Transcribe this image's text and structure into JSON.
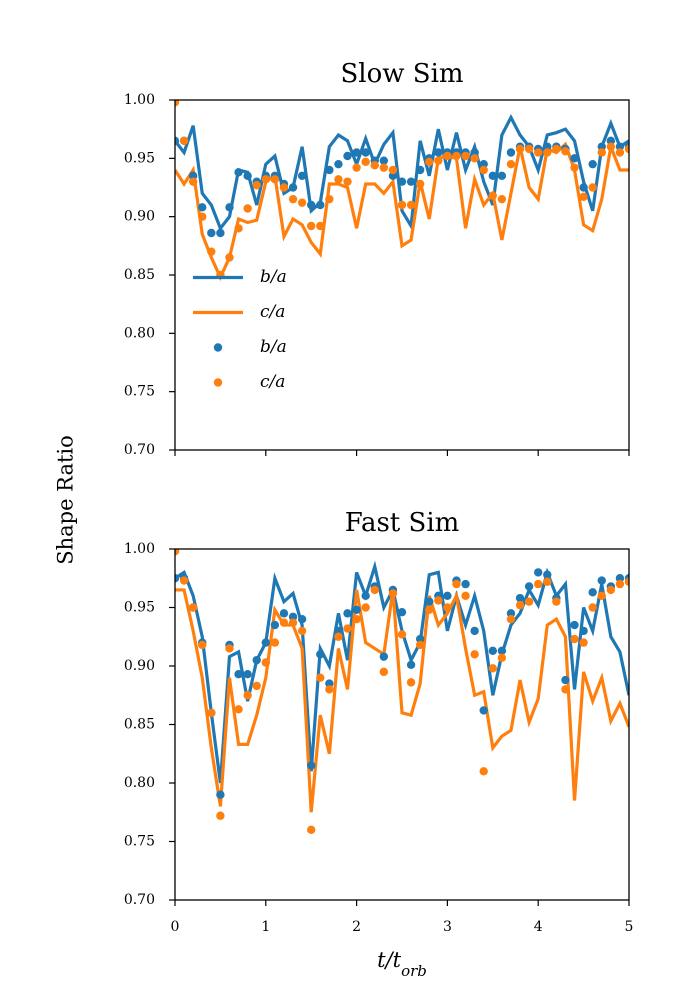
{
  "ylabel": "Shape Ratio",
  "chart_data": [
    {
      "type": "line",
      "title": "Slow Sim",
      "legend": "center left",
      "show_xtick_labels": false,
      "xlim": [
        0,
        5
      ],
      "xticks": [
        0,
        1,
        2,
        3,
        4,
        5
      ],
      "ylim": [
        0.7,
        1.0
      ],
      "yticks": [
        {
          "value": 0.7,
          "label": "0.70"
        },
        {
          "value": 0.75,
          "label": "0.75"
        },
        {
          "value": 0.8,
          "label": "0.80"
        },
        {
          "value": 0.85,
          "label": "0.85"
        },
        {
          "value": 0.9,
          "label": "0.90"
        },
        {
          "value": 0.95,
          "label": "0.95"
        },
        {
          "value": 1.0,
          "label": "1.00"
        }
      ],
      "x": [
        0,
        0.1,
        0.2,
        0.3,
        0.4,
        0.5,
        0.6,
        0.7,
        0.8,
        0.9,
        1,
        1.1,
        1.2,
        1.3,
        1.4,
        1.5,
        1.6,
        1.7,
        1.8,
        1.9,
        2,
        2.1,
        2.2,
        2.3,
        2.4,
        2.5,
        2.6,
        2.7,
        2.8,
        2.9,
        3,
        3.1,
        3.2,
        3.3,
        3.4,
        3.5,
        3.6,
        3.7,
        3.8,
        3.9,
        4,
        4.1,
        4.2,
        4.3,
        4.4,
        4.5,
        4.6,
        4.7,
        4.8,
        4.9,
        5
      ],
      "series": [
        {
          "name": "b/a",
          "style": "line",
          "color": "#1f77b4",
          "values": [
            0.965,
            0.955,
            0.978,
            0.92,
            0.91,
            0.89,
            0.9,
            0.94,
            0.938,
            0.91,
            0.945,
            0.952,
            0.92,
            0.925,
            0.96,
            0.905,
            0.912,
            0.96,
            0.97,
            0.965,
            0.945,
            0.967,
            0.945,
            0.962,
            0.972,
            0.905,
            0.892,
            0.965,
            0.935,
            0.975,
            0.94,
            0.972,
            0.94,
            0.96,
            0.93,
            0.91,
            0.97,
            0.985,
            0.97,
            0.96,
            0.94,
            0.97,
            0.972,
            0.975,
            0.965,
            0.93,
            0.905,
            0.96,
            0.98,
            0.96,
            0.965
          ]
        },
        {
          "name": "c/a",
          "style": "line",
          "color": "#ff7f0e",
          "values": [
            0.94,
            0.928,
            0.94,
            0.885,
            0.865,
            0.848,
            0.865,
            0.898,
            0.895,
            0.897,
            0.93,
            0.935,
            0.883,
            0.898,
            0.893,
            0.878,
            0.868,
            0.928,
            0.928,
            0.925,
            0.89,
            0.928,
            0.928,
            0.92,
            0.93,
            0.875,
            0.88,
            0.93,
            0.898,
            0.95,
            0.952,
            0.95,
            0.89,
            0.932,
            0.91,
            0.92,
            0.88,
            0.92,
            0.96,
            0.925,
            0.915,
            0.958,
            0.955,
            0.962,
            0.94,
            0.893,
            0.888,
            0.915,
            0.96,
            0.94,
            0.94
          ]
        },
        {
          "name": "b/a",
          "style": "points",
          "color": "#1f77b4",
          "values": [
            0.965,
            0.965,
            0.935,
            0.908,
            0.886,
            0.886,
            0.908,
            0.938,
            0.935,
            0.93,
            0.935,
            0.935,
            0.928,
            0.925,
            0.935,
            0.91,
            0.91,
            0.94,
            0.945,
            0.952,
            0.955,
            0.955,
            0.948,
            0.948,
            0.935,
            0.93,
            0.93,
            0.94,
            0.95,
            0.955,
            0.955,
            0.955,
            0.955,
            0.955,
            0.945,
            0.935,
            0.935,
            0.955,
            0.96,
            0.96,
            0.958,
            0.96,
            0.96,
            0.958,
            0.95,
            0.925,
            0.945,
            0.96,
            0.965,
            0.96,
            0.96
          ]
        },
        {
          "name": "c/a",
          "style": "points",
          "color": "#ff7f0e",
          "values": [
            0.998,
            0.965,
            0.93,
            0.9,
            0.87,
            0.85,
            0.865,
            0.89,
            0.907,
            0.927,
            0.932,
            0.932,
            0.925,
            0.915,
            0.912,
            0.892,
            0.892,
            0.915,
            0.932,
            0.93,
            0.942,
            0.947,
            0.944,
            0.942,
            0.94,
            0.91,
            0.91,
            0.928,
            0.947,
            0.948,
            0.952,
            0.952,
            0.952,
            0.95,
            0.94,
            0.918,
            0.915,
            0.945,
            0.958,
            0.958,
            0.955,
            0.955,
            0.958,
            0.956,
            0.942,
            0.917,
            0.925,
            0.955,
            0.96,
            0.955,
            0.958
          ]
        }
      ]
    },
    {
      "type": "line",
      "title": "Fast Sim",
      "xlabel": "t/t_orb",
      "show_xtick_labels": true,
      "xlim": [
        0,
        5
      ],
      "xticks": [
        0,
        1,
        2,
        3,
        4,
        5
      ],
      "ylim": [
        0.7,
        1.0
      ],
      "yticks": [
        {
          "value": 0.7,
          "label": "0.70"
        },
        {
          "value": 0.75,
          "label": "0.75"
        },
        {
          "value": 0.8,
          "label": "0.80"
        },
        {
          "value": 0.85,
          "label": "0.85"
        },
        {
          "value": 0.9,
          "label": "0.90"
        },
        {
          "value": 0.95,
          "label": "0.95"
        },
        {
          "value": 1.0,
          "label": "1.00"
        }
      ],
      "x": [
        0,
        0.1,
        0.2,
        0.3,
        0.4,
        0.5,
        0.6,
        0.7,
        0.8,
        0.9,
        1,
        1.1,
        1.2,
        1.3,
        1.4,
        1.5,
        1.6,
        1.7,
        1.8,
        1.9,
        2,
        2.1,
        2.2,
        2.3,
        2.4,
        2.5,
        2.6,
        2.7,
        2.8,
        2.9,
        3,
        3.1,
        3.2,
        3.3,
        3.4,
        3.5,
        3.6,
        3.7,
        3.8,
        3.9,
        4,
        4.1,
        4.2,
        4.3,
        4.4,
        4.5,
        4.6,
        4.7,
        4.8,
        4.9,
        5
      ],
      "series": [
        {
          "name": "b/a",
          "style": "line",
          "color": "#1f77b4",
          "values": [
            0.975,
            0.98,
            0.96,
            0.925,
            0.86,
            0.8,
            0.908,
            0.912,
            0.87,
            0.905,
            0.92,
            0.975,
            0.955,
            0.962,
            0.935,
            0.81,
            0.915,
            0.9,
            0.945,
            0.905,
            0.98,
            0.96,
            0.985,
            0.95,
            0.965,
            0.93,
            0.905,
            0.92,
            0.978,
            0.98,
            0.93,
            0.96,
            0.935,
            0.96,
            0.93,
            0.875,
            0.91,
            0.935,
            0.945,
            0.965,
            0.952,
            0.98,
            0.96,
            0.97,
            0.88,
            0.95,
            0.93,
            0.97,
            0.925,
            0.912,
            0.875
          ]
        },
        {
          "name": "c/a",
          "style": "line",
          "color": "#ff7f0e",
          "values": [
            0.965,
            0.965,
            0.93,
            0.89,
            0.83,
            0.78,
            0.89,
            0.833,
            0.833,
            0.858,
            0.89,
            0.948,
            0.935,
            0.935,
            0.915,
            0.775,
            0.858,
            0.825,
            0.915,
            0.88,
            0.965,
            0.92,
            0.915,
            0.91,
            0.965,
            0.86,
            0.858,
            0.885,
            0.96,
            0.935,
            0.945,
            0.96,
            0.915,
            0.875,
            0.878,
            0.83,
            0.84,
            0.845,
            0.888,
            0.852,
            0.872,
            0.935,
            0.94,
            0.925,
            0.785,
            0.895,
            0.87,
            0.89,
            0.853,
            0.868,
            0.848
          ]
        },
        {
          "name": "b/a",
          "style": "points",
          "color": "#1f77b4",
          "values": [
            0.975,
            0.975,
            0.95,
            0.92,
            0.86,
            0.79,
            0.918,
            0.893,
            0.893,
            0.905,
            0.92,
            0.935,
            0.945,
            0.942,
            0.94,
            0.815,
            0.91,
            0.885,
            0.93,
            0.945,
            0.948,
            0.96,
            0.968,
            0.908,
            0.965,
            0.946,
            0.901,
            0.923,
            0.955,
            0.96,
            0.96,
            0.973,
            0.97,
            0.93,
            0.862,
            0.913,
            0.913,
            0.945,
            0.958,
            0.968,
            0.98,
            0.978,
            0.958,
            0.888,
            0.935,
            0.93,
            0.963,
            0.973,
            0.968,
            0.975,
            0.975
          ]
        },
        {
          "name": "c/a",
          "style": "points",
          "color": "#ff7f0e",
          "values": [
            0.998,
            0.973,
            0.95,
            0.918,
            0.86,
            0.772,
            0.915,
            0.863,
            0.875,
            0.883,
            0.903,
            0.92,
            0.937,
            0.937,
            0.93,
            0.76,
            0.89,
            0.88,
            0.925,
            0.932,
            0.94,
            0.95,
            0.965,
            0.895,
            0.962,
            0.927,
            0.886,
            0.918,
            0.948,
            0.956,
            0.95,
            0.97,
            0.96,
            0.91,
            0.81,
            0.898,
            0.907,
            0.94,
            0.952,
            0.955,
            0.97,
            0.972,
            0.955,
            0.88,
            0.923,
            0.92,
            0.95,
            0.96,
            0.965,
            0.97,
            0.972
          ]
        }
      ]
    }
  ]
}
